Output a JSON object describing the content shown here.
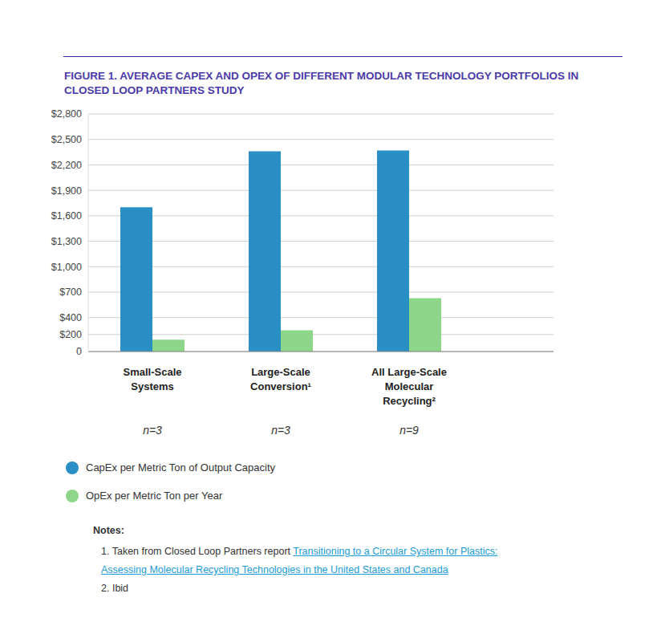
{
  "chart_data": {
    "type": "bar",
    "title": "FIGURE 1. AVERAGE CAPEX AND OPEX OF DIFFERENT MODULAR TECHNOLOGY PORTFOLIOS IN CLOSED LOOP PARTNERS STUDY",
    "categories": [
      "Small-Scale Systems",
      "Large-Scale Conversion¹",
      "All Large-Scale Molecular Recycling²"
    ],
    "annotations": [
      "n=3",
      "n=3",
      "n=9"
    ],
    "series": [
      {
        "name": "CapEx per Metric Ton of Output Capacity",
        "color": "#2a8fc4",
        "values": [
          1700,
          2360,
          2370
        ]
      },
      {
        "name": "OpEx per Metric Ton per Year",
        "color": "#8ed68a",
        "values": [
          140,
          250,
          630
        ]
      }
    ],
    "ylim": [
      0,
      2800
    ],
    "yticks": [
      0,
      {
        "value": 200,
        "label": "$200"
      },
      {
        "value": 400,
        "label": "$400"
      },
      {
        "value": 700,
        "label": "$700"
      },
      {
        "value": 1000,
        "label": "$1,000"
      },
      {
        "value": 1300,
        "label": "$1,300"
      },
      {
        "value": 1600,
        "label": "$1,600"
      },
      {
        "value": 1900,
        "label": "$1,900"
      },
      {
        "value": 2200,
        "label": "$2,200"
      },
      {
        "value": 2500,
        "label": "$2,500"
      },
      {
        "value": 2800,
        "label": "$2,800"
      }
    ],
    "grid": true,
    "legend": "bottom"
  },
  "notes": {
    "heading": "Notes:",
    "items": [
      {
        "number": "1.",
        "text": "Taken from Closed Loop Partners report",
        "link": "Transitioning to a Circular System for Plastics: Assessing Molecular Recycling Technologies in the United States and Canada"
      },
      {
        "number": "2.",
        "text": "Ibid"
      }
    ]
  }
}
